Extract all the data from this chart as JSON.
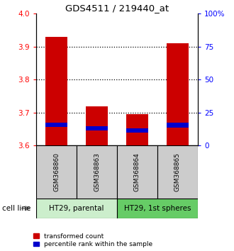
{
  "title": "GDS4511 / 219440_at",
  "samples": [
    "GSM368860",
    "GSM368863",
    "GSM368864",
    "GSM368865"
  ],
  "red_values": [
    3.93,
    3.72,
    3.695,
    3.91
  ],
  "blue_values": [
    3.664,
    3.652,
    3.645,
    3.662
  ],
  "ylim_left": [
    3.6,
    4.0
  ],
  "ylim_right": [
    0,
    100
  ],
  "yticks_left": [
    3.6,
    3.7,
    3.8,
    3.9,
    4.0
  ],
  "yticks_right": [
    0,
    25,
    50,
    75,
    100
  ],
  "ytick_labels_right": [
    "0",
    "25",
    "50",
    "75",
    "100%"
  ],
  "bar_width": 0.55,
  "blue_bar_height": 0.013,
  "red_color": "#cc0000",
  "blue_color": "#0000cc",
  "legend_red": "transformed count",
  "legend_blue": "percentile rank within the sample",
  "cell_line_label": "cell line",
  "sample_box_color": "#cccccc",
  "group1_label": "HT29, parental",
  "group1_color": "#cceecc",
  "group2_label": "HT29, 1st spheres",
  "group2_color": "#66cc66",
  "dotted_lines": [
    3.7,
    3.8,
    3.9
  ]
}
